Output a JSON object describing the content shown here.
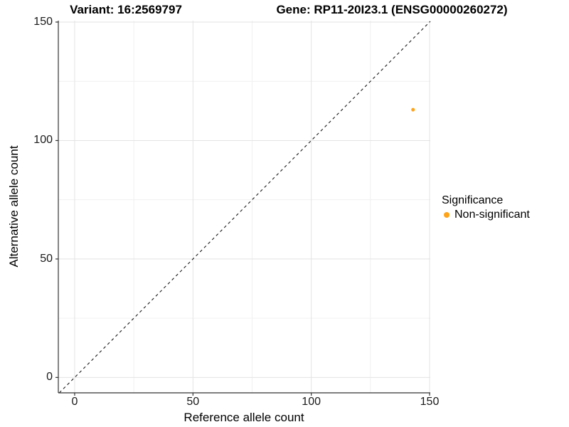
{
  "chart_data": {
    "type": "scatter",
    "title_left": "Variant: 16:2569797",
    "title_right": "Gene: RP11-20I23.1 (ENSG00000260272)",
    "xlabel": "Reference allele count",
    "ylabel": "Alternative allele count",
    "xlim": [
      -6.9,
      150.3
    ],
    "ylim": [
      -6.5,
      150.6
    ],
    "x_ticks": [
      0,
      50,
      100,
      150
    ],
    "y_ticks": [
      0,
      50,
      100,
      150
    ],
    "x_minor_ticks": [
      25,
      75,
      125
    ],
    "y_minor_ticks": [
      25,
      75,
      125
    ],
    "grid": "on",
    "identity_line": {
      "slope": 1,
      "intercept": 0,
      "style": "dashed",
      "color": "#1a1a1a"
    },
    "series": [
      {
        "name": "Non-significant",
        "color": "#FFA319",
        "point_radius": 2.5,
        "points": [
          {
            "x": 143,
            "y": 113
          }
        ]
      }
    ],
    "legend": {
      "title": "Significance",
      "position": "right",
      "entries": [
        {
          "label": "Non-significant",
          "color": "#FFA319"
        }
      ]
    },
    "colors": {
      "axis_line": "#333333",
      "tick_mark": "#333333",
      "major_grid": "#e3e3e3",
      "minor_grid": "#f0f0f0",
      "background": "#ffffff"
    }
  }
}
